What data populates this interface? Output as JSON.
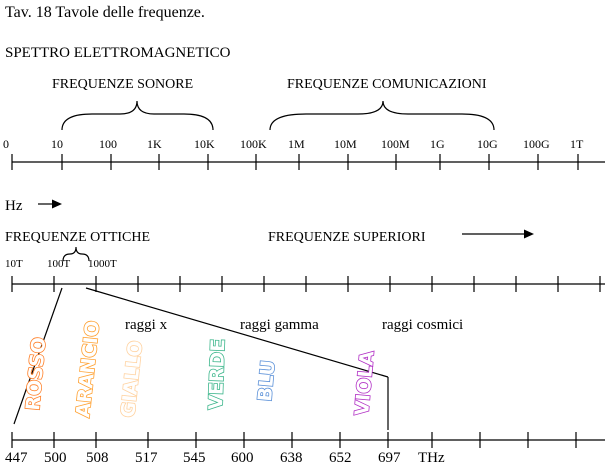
{
  "page_title": "Tav. 18 Tavole delle frequenze.",
  "section_title": "SPETTRO ELETTROMAGNETICO",
  "groups": {
    "sound": "FREQUENZE SONORE",
    "communications": "FREQUENZE COMUNICAZIONI",
    "optical": "FREQUENZE OTTICHE",
    "higher": "FREQUENZE SUPERIORI"
  },
  "unit_hz": "Hz",
  "scale1_ticks": [
    "0",
    "10",
    "100",
    "1K",
    "10K",
    "100K",
    "1M",
    "10M",
    "100M",
    "1G",
    "10G",
    "100G",
    "1T"
  ],
  "scale2_ticks": [
    "10T",
    "100T",
    "1000T"
  ],
  "radiation": {
    "x": "raggi x",
    "gamma": "raggi gamma",
    "cosmic": "raggi cosmici"
  },
  "colors": [
    {
      "name": "ROSSO",
      "color": "#ff7f27"
    },
    {
      "name": "ARANCIO",
      "color": "#ffa030"
    },
    {
      "name": "GIALLO",
      "color": "#ffd2a0"
    },
    {
      "name": "VERDE",
      "color": "#3ab58a"
    },
    {
      "name": "BLU",
      "color": "#5a90d8"
    },
    {
      "name": "VIOLA",
      "color": "#b02cc4"
    }
  ],
  "scale3_ticks": [
    "447",
    "500",
    "508",
    "517",
    "545",
    "600",
    "638",
    "652",
    "697"
  ],
  "unit_thz": "THz"
}
